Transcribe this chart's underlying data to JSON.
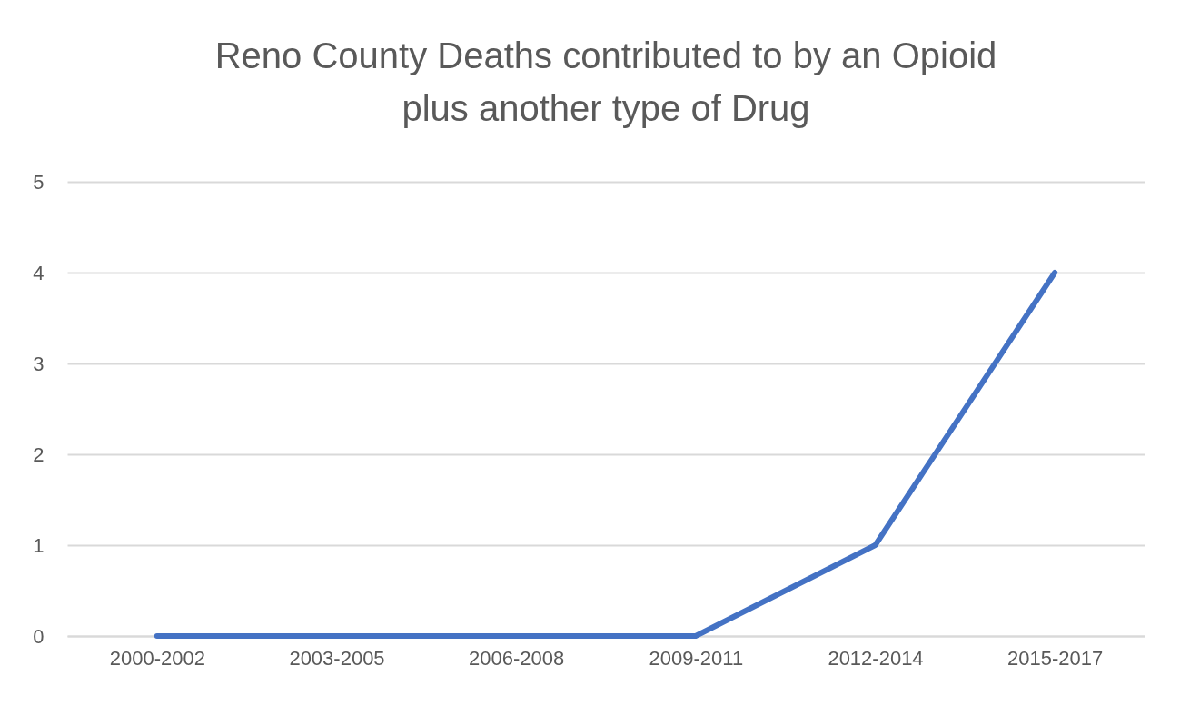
{
  "chart_data": {
    "type": "line",
    "title": "Reno County Deaths contributed to by an Opioid\nplus another type of Drug",
    "categories": [
      "2000-2002",
      "2003-2005",
      "2006-2008",
      "2009-2011",
      "2012-2014",
      "2015-2017"
    ],
    "series": [
      {
        "color": "#4472c4",
        "values": [
          0,
          0,
          0,
          0,
          1,
          4
        ]
      }
    ],
    "ylim": [
      0,
      5
    ],
    "yticks": [
      0,
      1,
      2,
      3,
      4,
      5
    ],
    "grid": "y",
    "legend": false,
    "marker": "none",
    "line_style": "solid"
  }
}
